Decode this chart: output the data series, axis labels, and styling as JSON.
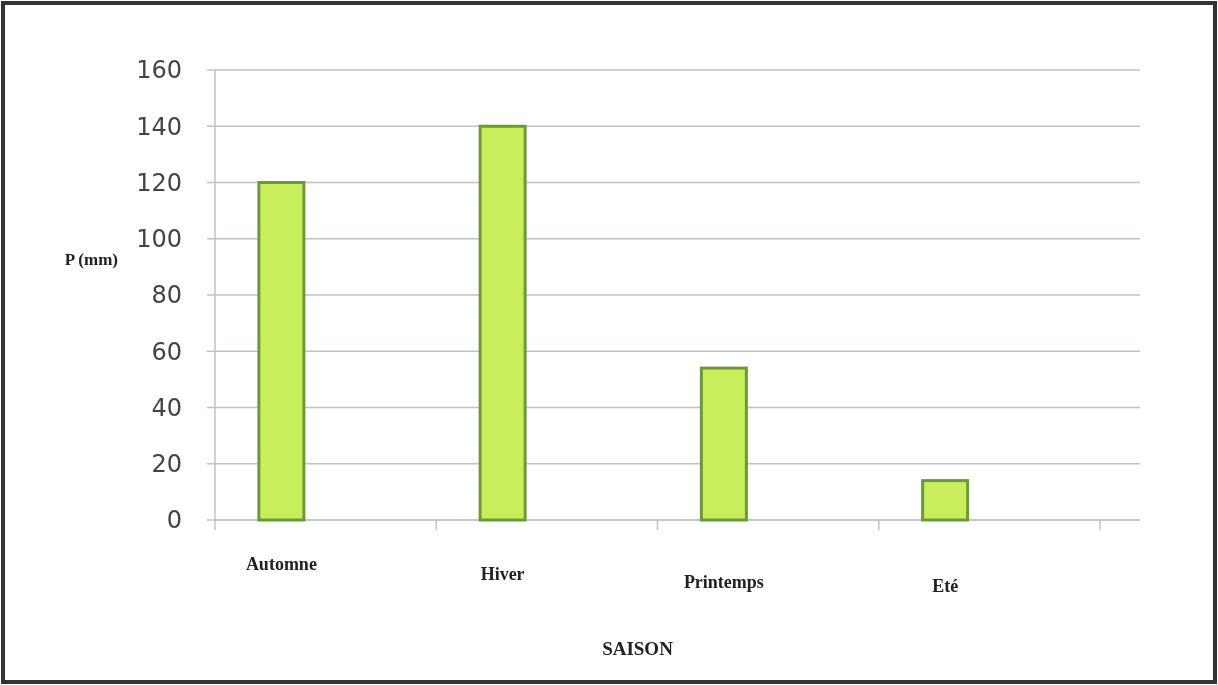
{
  "chart_data": {
    "type": "bar",
    "xlabel": "SAISON",
    "ylabel": "P (mm)",
    "categories": [
      "Automne",
      "Hiver",
      "Printemps",
      "Eté"
    ],
    "values": [
      120,
      140,
      54,
      14
    ],
    "color": "#c8ee5c",
    "ylim": [
      0,
      160
    ],
    "yticks": [
      0,
      20,
      40,
      60,
      80,
      100,
      120,
      140,
      160
    ],
    "grid": "y"
  }
}
